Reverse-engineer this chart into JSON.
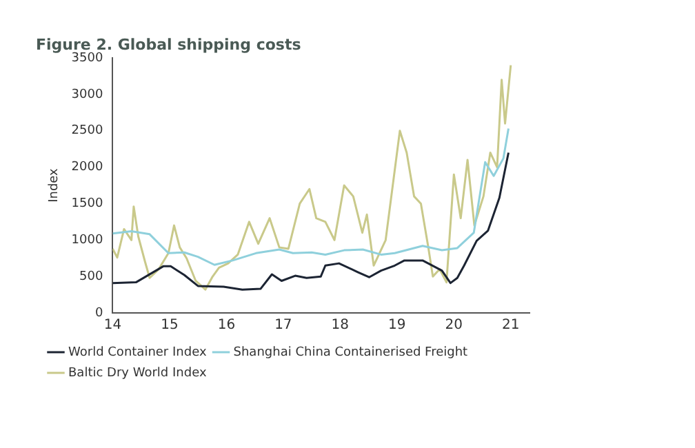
{
  "chart_data": {
    "type": "line",
    "title": "Figure 2. Global shipping costs",
    "ylabel": "Index",
    "xlim": [
      14,
      21.33
    ],
    "xticks": [
      14,
      15,
      16,
      17,
      18,
      19,
      20,
      21
    ],
    "ylim": [
      0,
      3500
    ],
    "yticks": [
      0,
      500,
      1000,
      1500,
      2000,
      2500,
      3000,
      3500
    ],
    "grid": false,
    "legend": "bottom",
    "marker": "none",
    "line_style": "solid",
    "series": [
      {
        "name": "World Container Index",
        "color": "#1c2433",
        "x": [
          14.0,
          14.41,
          14.89,
          15.02,
          15.26,
          15.5,
          15.95,
          16.28,
          16.6,
          16.8,
          16.97,
          17.21,
          17.41,
          17.66,
          17.74,
          17.98,
          18.31,
          18.51,
          18.72,
          18.96,
          19.13,
          19.45,
          19.79,
          19.94,
          20.06,
          20.18,
          20.4,
          20.6,
          20.8,
          20.96
        ],
        "values": [
          410,
          420,
          640,
          640,
          520,
          370,
          360,
          320,
          330,
          530,
          440,
          510,
          480,
          500,
          650,
          680,
          560,
          490,
          580,
          650,
          720,
          720,
          580,
          410,
          480,
          650,
          990,
          1130,
          1580,
          2200
        ]
      },
      {
        "name": "Shanghai China Containerised Freight",
        "color": "#8fd0dc",
        "x": [
          14.0,
          14.33,
          14.65,
          14.98,
          15.26,
          15.5,
          15.79,
          16.11,
          16.52,
          16.93,
          17.17,
          17.5,
          17.74,
          18.07,
          18.4,
          18.72,
          18.96,
          19.45,
          19.79,
          20.06,
          20.35,
          20.55,
          20.7,
          20.87,
          20.96
        ],
        "values": [
          1090,
          1120,
          1080,
          820,
          830,
          770,
          660,
          720,
          820,
          870,
          820,
          830,
          800,
          860,
          870,
          800,
          820,
          920,
          860,
          890,
          1100,
          2070,
          1880,
          2120,
          2530
        ]
      },
      {
        "name": "Baltic Dry World Index",
        "color": "#c9c98a",
        "x": [
          14.0,
          14.08,
          14.2,
          14.33,
          14.37,
          14.45,
          14.57,
          14.65,
          14.81,
          14.98,
          15.08,
          15.18,
          15.3,
          15.46,
          15.63,
          15.75,
          15.87,
          16.03,
          16.2,
          16.4,
          16.56,
          16.76,
          16.93,
          17.09,
          17.29,
          17.46,
          17.58,
          17.74,
          17.9,
          18.07,
          18.23,
          18.39,
          18.47,
          18.59,
          18.8,
          19.05,
          19.17,
          19.3,
          19.42,
          19.55,
          19.63,
          19.75,
          19.87,
          20.0,
          20.12,
          20.24,
          20.36,
          20.52,
          20.64,
          20.76,
          20.84,
          20.9,
          21.0
        ],
        "values": [
          880,
          760,
          1150,
          1000,
          1460,
          1050,
          700,
          480,
          600,
          820,
          1200,
          900,
          750,
          440,
          320,
          490,
          620,
          680,
          800,
          1250,
          950,
          1300,
          900,
          880,
          1500,
          1700,
          1300,
          1250,
          1000,
          1750,
          1600,
          1100,
          1350,
          650,
          1000,
          2500,
          2200,
          1600,
          1500,
          900,
          500,
          600,
          420,
          1900,
          1300,
          2100,
          1200,
          1600,
          2200,
          2000,
          3200,
          2600,
          3400
        ]
      }
    ]
  }
}
